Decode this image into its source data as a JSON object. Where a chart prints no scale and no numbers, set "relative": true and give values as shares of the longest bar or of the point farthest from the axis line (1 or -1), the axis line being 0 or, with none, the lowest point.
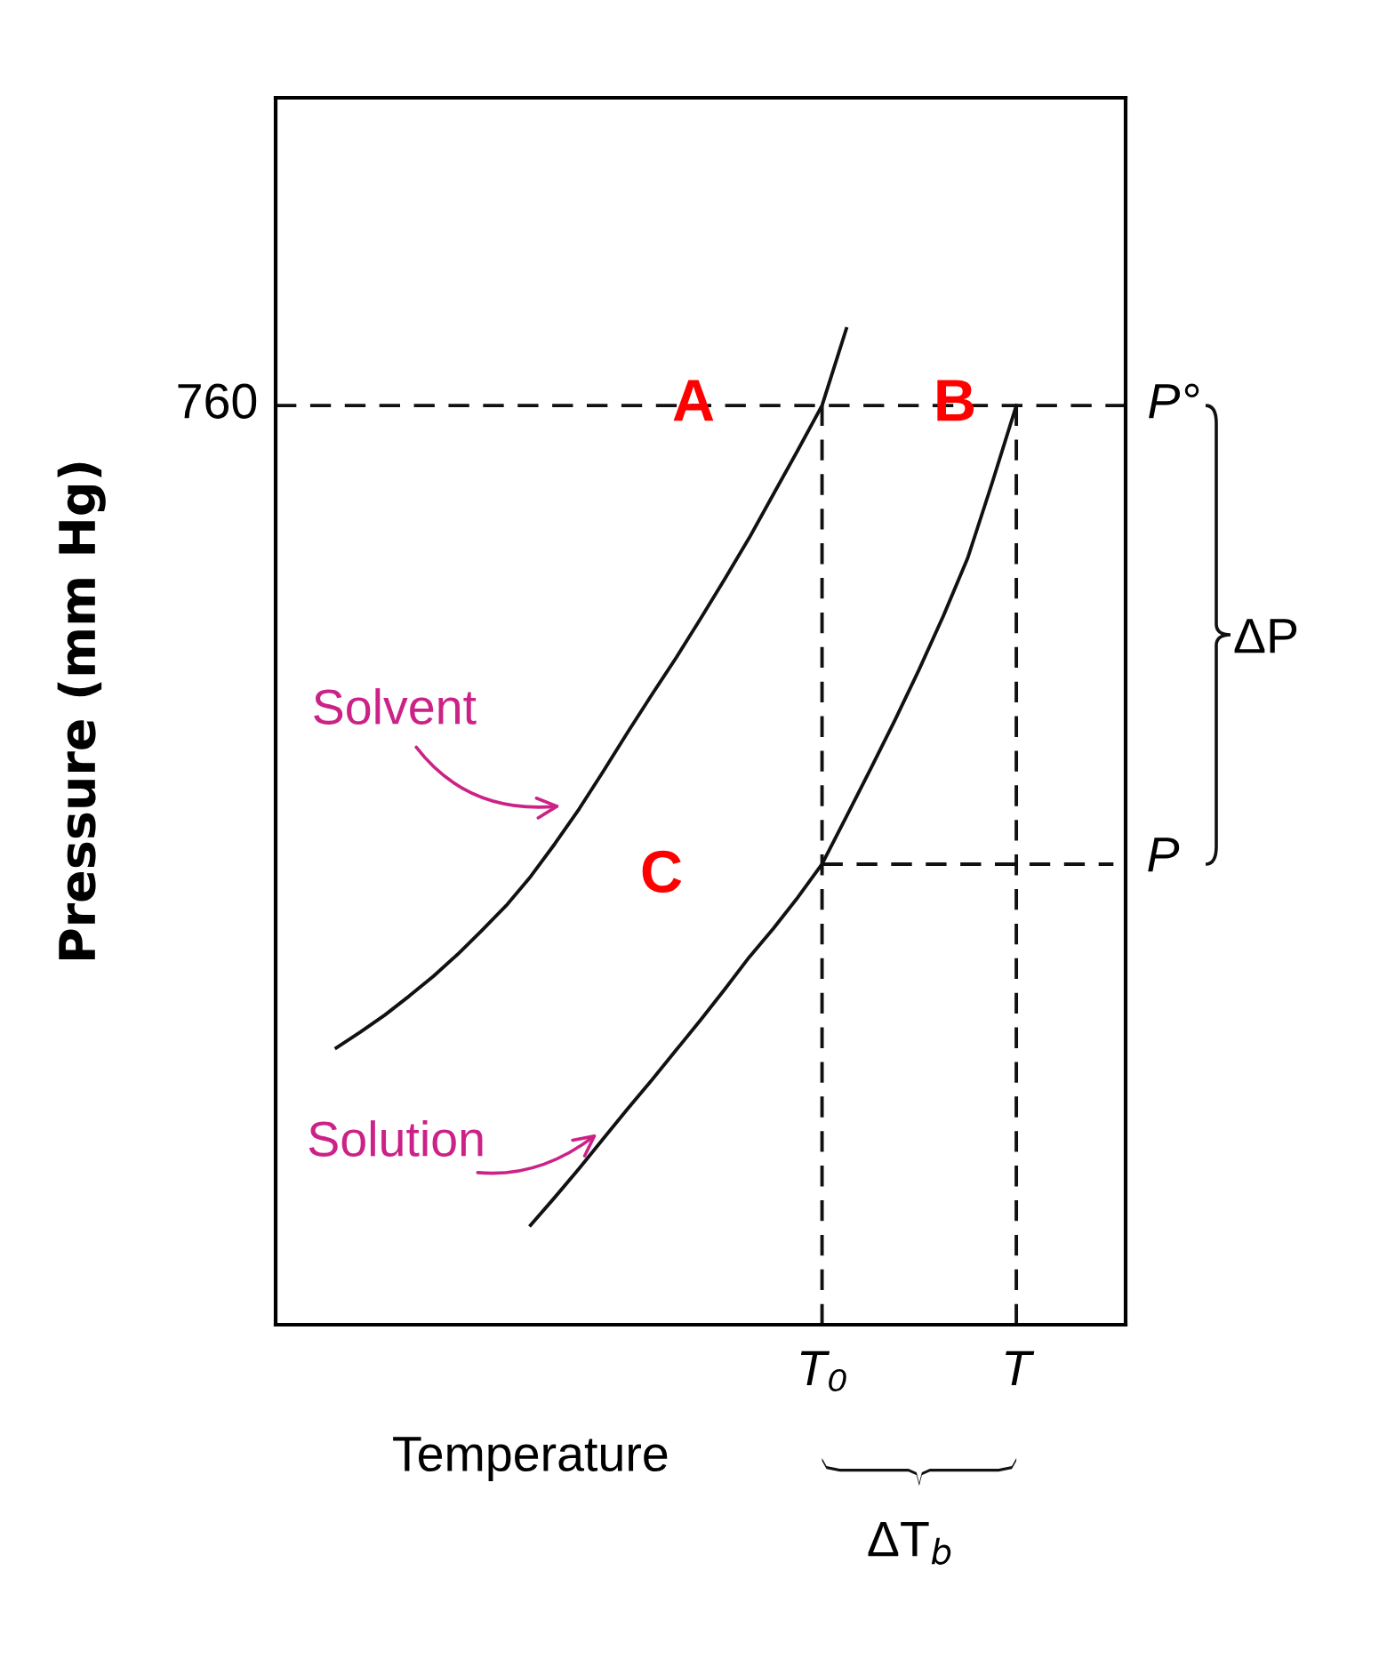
{
  "chart_data": {
    "type": "line",
    "relative": true,
    "ylabel": "Pressure (mm Hg)",
    "xlabel": "Temperature",
    "categories": [
      null,
      null,
      null,
      null,
      null,
      null,
      null,
      null,
      null,
      null,
      null,
      null,
      null,
      null,
      null,
      null,
      null,
      null,
      null,
      null,
      null,
      null,
      "T₀",
      null,
      null,
      null,
      null,
      null,
      null,
      null,
      "T",
      null,
      null,
      null,
      null
    ],
    "grid": false,
    "legend": false,
    "marker": "none",
    "line_style": "solid",
    "series": [
      {
        "color": "#111111",
        "values": [
          null,
          null,
          0.278,
          0.294,
          0.311,
          0.33,
          0.35,
          0.372,
          0.396,
          0.421,
          0.45,
          0.483,
          0.518,
          0.556,
          0.595,
          0.633,
          0.67,
          0.709,
          0.749,
          0.79,
          0.834,
          0.878,
          0.923,
          1.0,
          null,
          null,
          null,
          null,
          null,
          null,
          null,
          null,
          null,
          null,
          null
        ]
      },
      {
        "color": "#111111",
        "values": [
          null,
          null,
          null,
          null,
          null,
          null,
          null,
          null,
          null,
          null,
          0.1,
          0.128,
          0.157,
          0.187,
          0.217,
          0.246,
          0.276,
          0.306,
          0.337,
          0.369,
          0.398,
          0.429,
          0.4625,
          0.51,
          0.558,
          0.607,
          0.658,
          0.712,
          0.77,
          0.845,
          0.923,
          null,
          null,
          null,
          null
        ]
      },
      {
        "color": "#111111",
        "line_style": "dashed",
        "values": [
          null,
          null,
          null,
          null,
          null,
          null,
          null,
          null,
          null,
          null,
          null,
          null,
          null,
          null,
          null,
          null,
          null,
          null,
          null,
          null,
          null,
          null,
          0.4625,
          0.4625,
          0.4625,
          0.4625,
          0.4625,
          0.4625,
          0.4625,
          0.4625,
          0.4625,
          0.4625,
          0.4625,
          0.4625,
          0.4625
        ]
      }
    ],
    "ref_lines": [
      {
        "axis": "y",
        "value": 0.923,
        "color": "#111111",
        "line_style": "dashed"
      },
      {
        "axis": "x",
        "value": "T₀",
        "color": "#111111",
        "line_style": "dashed"
      },
      {
        "axis": "x",
        "value": "T",
        "color": "#111111",
        "line_style": "dashed"
      }
    ],
    "annotations": [
      "P°",
      "P",
      "760",
      "ΔP",
      "ΔT$_{b}$",
      "A",
      "B",
      "C",
      "Solvent",
      "Solution"
    ]
  }
}
